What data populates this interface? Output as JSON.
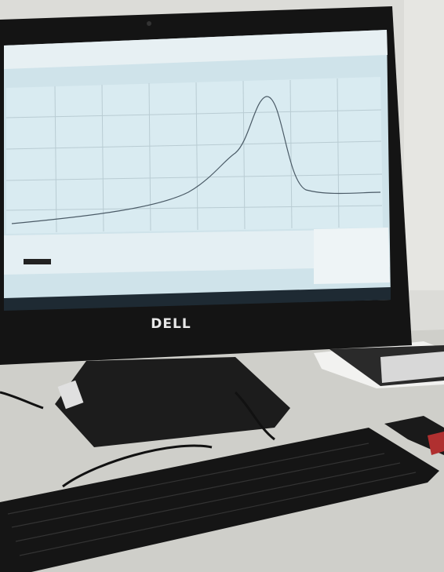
{
  "monitor": {
    "brand": "DELL"
  }
}
